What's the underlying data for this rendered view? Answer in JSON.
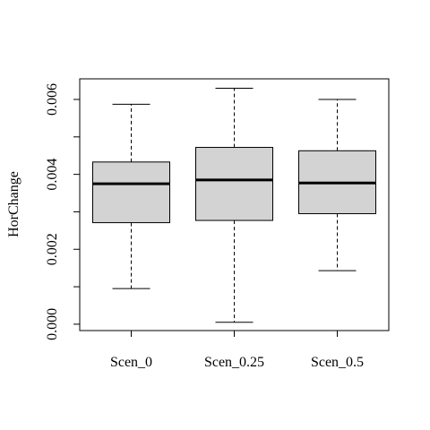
{
  "chart_data": {
    "type": "boxplot",
    "title": "",
    "xlabel": "",
    "ylabel": "HorChange",
    "ylim": [
      -0.00017,
      0.00655
    ],
    "yticks": [
      0.0,
      0.002,
      0.004,
      0.006
    ],
    "ytick_labels": [
      "0.000",
      "0.002",
      "0.004",
      "0.006"
    ],
    "grid": false,
    "box_fill": "#d3d3d3",
    "categories": [
      "Scen_0",
      "Scen_0.25",
      "Scen_0.5"
    ],
    "series": [
      {
        "category": "Scen_0",
        "whisker_low": 0.00095,
        "q1": 0.00271,
        "median": 0.00375,
        "q3": 0.00433,
        "whisker_high": 0.00587
      },
      {
        "category": "Scen_0.25",
        "whisker_low": 5e-05,
        "q1": 0.00277,
        "median": 0.00385,
        "q3": 0.00472,
        "whisker_high": 0.0063
      },
      {
        "category": "Scen_0.5",
        "whisker_low": 0.00143,
        "q1": 0.00295,
        "median": 0.00377,
        "q3": 0.00463,
        "whisker_high": 0.006
      }
    ]
  }
}
